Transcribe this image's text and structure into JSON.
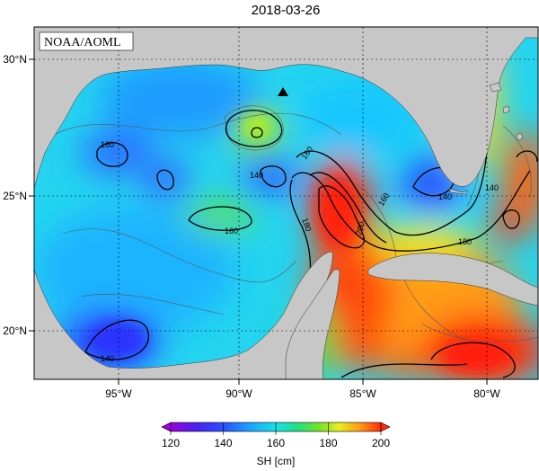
{
  "title": "2018-03-26",
  "credit": "NOAA/AOML",
  "map": {
    "lat_ticks": [
      "30°N",
      "25°N",
      "20°N"
    ],
    "lon_ticks": [
      "95°W",
      "90°W",
      "85°W",
      "80°W"
    ],
    "contour_labels": [
      "160",
      "160",
      "160",
      "160",
      "140",
      "140",
      "140",
      "180",
      "180",
      "200",
      "140"
    ],
    "colors": {
      "land": "#c7c7c7",
      "frame": "#000000"
    }
  },
  "colorbar": {
    "label": "SH [cm]",
    "ticks": [
      "120",
      "140",
      "160",
      "180",
      "200"
    ],
    "min": 120,
    "max": 200,
    "colors": [
      "#9b00d6",
      "#5a1ee8",
      "#2a3cff",
      "#1a82ff",
      "#18c8ff",
      "#1ae8c8",
      "#22e07a",
      "#64e028",
      "#b6f01c",
      "#f6f21c",
      "#ffbe18",
      "#ff7a10",
      "#ff2a08"
    ]
  }
}
